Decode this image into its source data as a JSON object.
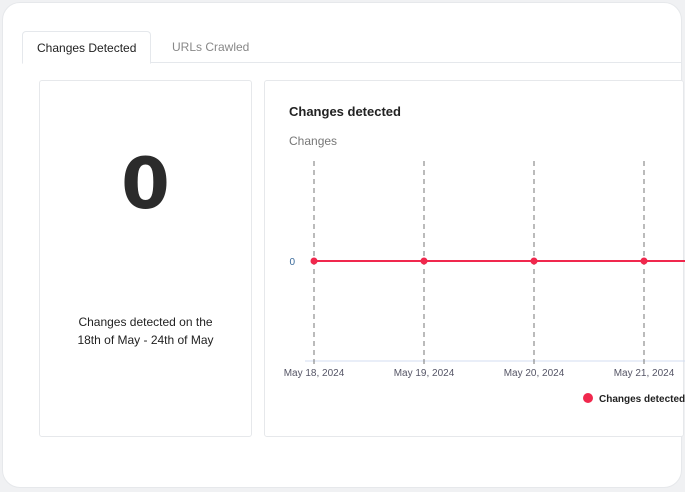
{
  "tabs": [
    {
      "label": "Changes Detected",
      "active": true
    },
    {
      "label": "URLs Crawled",
      "active": false
    }
  ],
  "summary": {
    "count": "0",
    "description_line1": "Changes detected on the",
    "description_line2": "18th of May - 24th of May"
  },
  "chart_data": {
    "type": "line",
    "title": "Changes detected",
    "ylabel": "Changes",
    "categories": [
      "May 18, 2024",
      "May 19, 2024",
      "May 20, 2024",
      "May 21, 2024"
    ],
    "series": [
      {
        "name": "Changes detected",
        "values": [
          0,
          0,
          0,
          0
        ],
        "color": "#f0284d"
      }
    ],
    "yticks": [
      "0"
    ],
    "grid": "vertical dashed",
    "legend": "bottom"
  }
}
